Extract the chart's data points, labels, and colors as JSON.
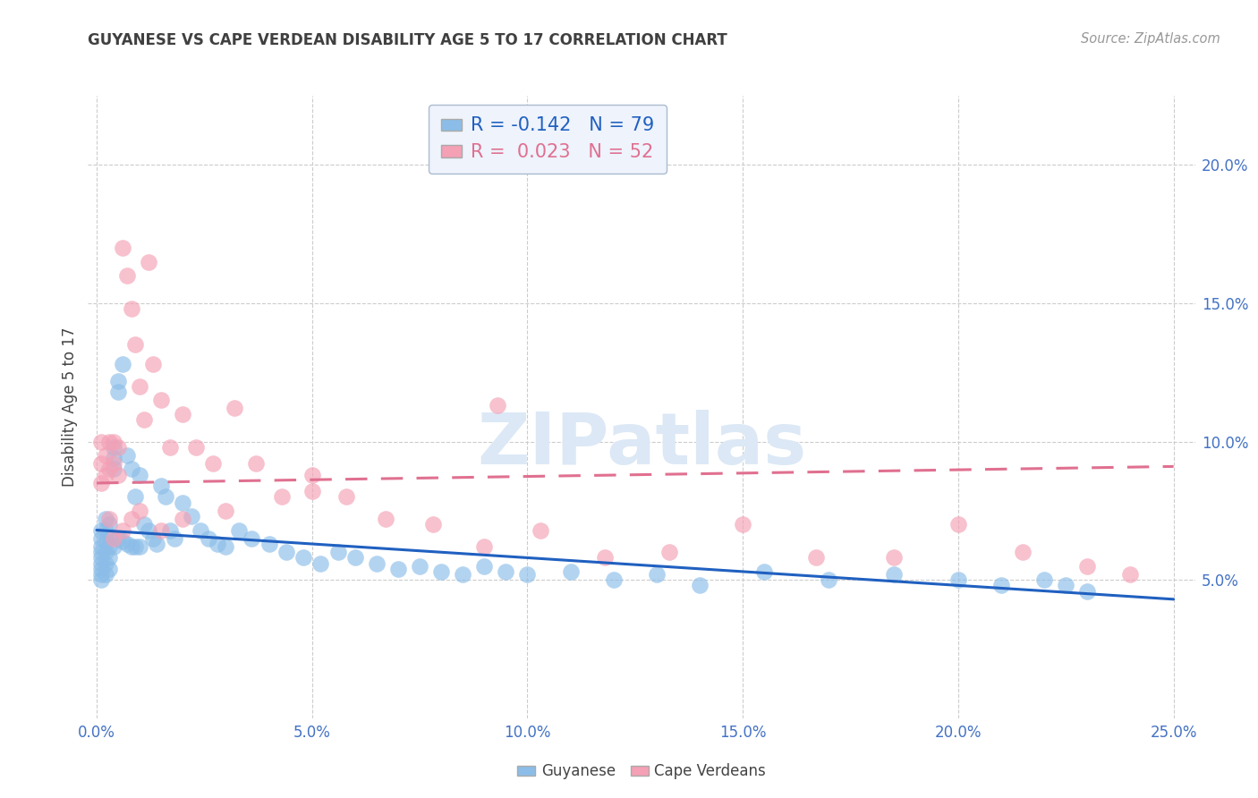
{
  "title": "GUYANESE VS CAPE VERDEAN DISABILITY AGE 5 TO 17 CORRELATION CHART",
  "source": "Source: ZipAtlas.com",
  "ylabel": "Disability Age 5 to 17",
  "xlabel_ticks": [
    "0.0%",
    "5.0%",
    "10.0%",
    "15.0%",
    "20.0%",
    "25.0%"
  ],
  "xlabel_vals": [
    0.0,
    0.05,
    0.1,
    0.15,
    0.2,
    0.25
  ],
  "ylabel_ticks": [
    "5.0%",
    "10.0%",
    "15.0%",
    "20.0%"
  ],
  "ylabel_vals": [
    0.05,
    0.1,
    0.15,
    0.2
  ],
  "xlim": [
    -0.002,
    0.255
  ],
  "ylim": [
    0.0,
    0.225
  ],
  "guyanese_R": -0.142,
  "guyanese_N": 79,
  "capeverdean_R": 0.023,
  "capeverdean_N": 52,
  "guyanese_color": "#8BBDE8",
  "capeverdean_color": "#F4A0B5",
  "guyanese_line_color": "#2060C0",
  "capeverdean_line_color": "#E07090",
  "background_color": "#ffffff",
  "grid_color": "#cccccc",
  "title_color": "#404040",
  "axis_label_color": "#4472C4",
  "legend_box_color": "#EEF3FC",
  "legend_border_color": "#AABBD0",
  "guyanese_x": [
    0.001,
    0.001,
    0.001,
    0.001,
    0.001,
    0.001,
    0.001,
    0.001,
    0.001,
    0.002,
    0.002,
    0.002,
    0.002,
    0.002,
    0.002,
    0.003,
    0.003,
    0.003,
    0.003,
    0.003,
    0.004,
    0.004,
    0.004,
    0.004,
    0.005,
    0.005,
    0.005,
    0.006,
    0.006,
    0.007,
    0.007,
    0.008,
    0.008,
    0.009,
    0.009,
    0.01,
    0.01,
    0.011,
    0.012,
    0.013,
    0.014,
    0.015,
    0.016,
    0.017,
    0.018,
    0.02,
    0.022,
    0.024,
    0.026,
    0.028,
    0.03,
    0.033,
    0.036,
    0.04,
    0.044,
    0.048,
    0.052,
    0.056,
    0.06,
    0.065,
    0.07,
    0.075,
    0.08,
    0.085,
    0.09,
    0.095,
    0.1,
    0.11,
    0.12,
    0.13,
    0.14,
    0.155,
    0.17,
    0.185,
    0.2,
    0.21,
    0.22,
    0.225,
    0.23
  ],
  "guyanese_y": [
    0.068,
    0.065,
    0.062,
    0.06,
    0.058,
    0.056,
    0.054,
    0.052,
    0.05,
    0.072,
    0.068,
    0.064,
    0.06,
    0.056,
    0.052,
    0.07,
    0.066,
    0.062,
    0.058,
    0.054,
    0.098,
    0.094,
    0.09,
    0.062,
    0.122,
    0.118,
    0.065,
    0.128,
    0.064,
    0.095,
    0.063,
    0.09,
    0.062,
    0.08,
    0.062,
    0.088,
    0.062,
    0.07,
    0.068,
    0.065,
    0.063,
    0.084,
    0.08,
    0.068,
    0.065,
    0.078,
    0.073,
    0.068,
    0.065,
    0.063,
    0.062,
    0.068,
    0.065,
    0.063,
    0.06,
    0.058,
    0.056,
    0.06,
    0.058,
    0.056,
    0.054,
    0.055,
    0.053,
    0.052,
    0.055,
    0.053,
    0.052,
    0.053,
    0.05,
    0.052,
    0.048,
    0.053,
    0.05,
    0.052,
    0.05,
    0.048,
    0.05,
    0.048,
    0.046
  ],
  "capeverdean_x": [
    0.001,
    0.001,
    0.001,
    0.002,
    0.002,
    0.003,
    0.003,
    0.004,
    0.004,
    0.005,
    0.005,
    0.006,
    0.007,
    0.008,
    0.009,
    0.01,
    0.011,
    0.012,
    0.013,
    0.015,
    0.017,
    0.02,
    0.023,
    0.027,
    0.032,
    0.037,
    0.043,
    0.05,
    0.058,
    0.067,
    0.078,
    0.09,
    0.103,
    0.118,
    0.133,
    0.15,
    0.167,
    0.185,
    0.2,
    0.215,
    0.23,
    0.24,
    0.093,
    0.05,
    0.03,
    0.02,
    0.015,
    0.01,
    0.008,
    0.006,
    0.004,
    0.003
  ],
  "capeverdean_y": [
    0.1,
    0.092,
    0.085,
    0.095,
    0.088,
    0.1,
    0.09,
    0.1,
    0.092,
    0.098,
    0.088,
    0.17,
    0.16,
    0.148,
    0.135,
    0.12,
    0.108,
    0.165,
    0.128,
    0.115,
    0.098,
    0.11,
    0.098,
    0.092,
    0.112,
    0.092,
    0.08,
    0.088,
    0.08,
    0.072,
    0.07,
    0.062,
    0.068,
    0.058,
    0.06,
    0.07,
    0.058,
    0.058,
    0.07,
    0.06,
    0.055,
    0.052,
    0.113,
    0.082,
    0.075,
    0.072,
    0.068,
    0.075,
    0.072,
    0.068,
    0.065,
    0.072
  ],
  "guyanese_trend_x": [
    0.0,
    0.25
  ],
  "guyanese_trend_y": [
    0.068,
    0.043
  ],
  "capeverdean_trend_x": [
    0.0,
    0.25
  ],
  "capeverdean_trend_y": [
    0.085,
    0.091
  ],
  "watermark": "ZIPatlas",
  "watermark_color": "#dce8f5"
}
